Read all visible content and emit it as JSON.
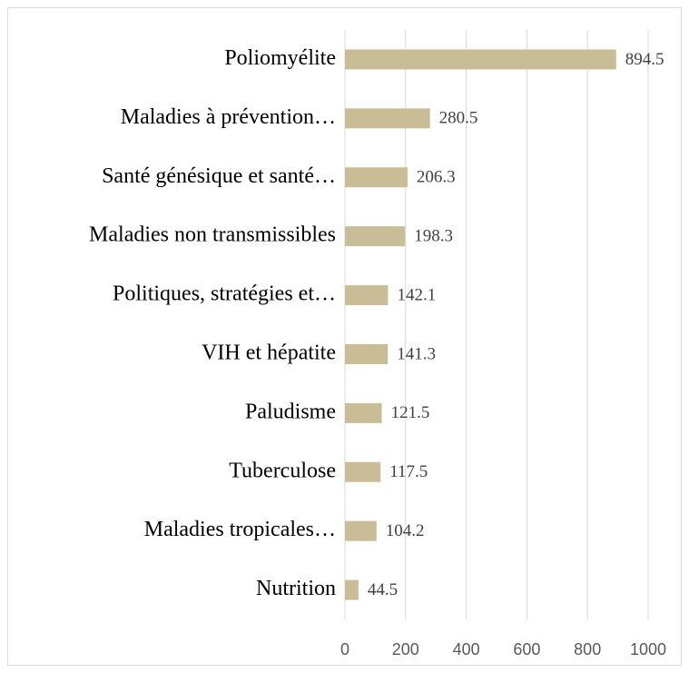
{
  "chart_data": {
    "type": "bar",
    "orientation": "horizontal",
    "categories": [
      "Poliomyélite",
      "Maladies à prévention…",
      "Santé génésique et santé…",
      "Maladies non transmissibles",
      "Politiques, stratégies et…",
      "VIH et hépatite",
      "Paludisme",
      "Tuberculose",
      "Maladies tropicales…",
      "Nutrition"
    ],
    "values": [
      894.5,
      280.5,
      206.3,
      198.3,
      142.1,
      141.3,
      121.5,
      117.5,
      104.2,
      44.5
    ],
    "color": "#c9bd97",
    "xlim": [
      0,
      1000
    ],
    "xticks": [
      0,
      200,
      400,
      600,
      800,
      1000
    ],
    "grid": true
  }
}
